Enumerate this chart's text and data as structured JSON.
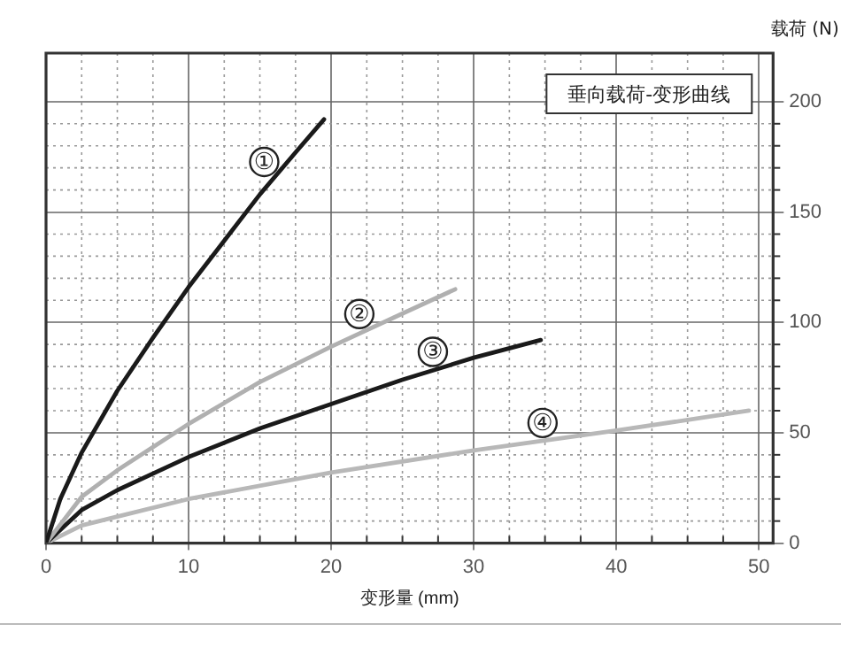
{
  "chart_data": {
    "type": "line",
    "xlabel": "变形量 (mm)",
    "ylabel": "载荷 (N)",
    "annotations": [
      "垂向载荷-变形曲线"
    ],
    "xlim": [
      0,
      51
    ],
    "xticks": [
      0,
      10,
      20,
      30,
      40,
      50
    ],
    "ylim": [
      0,
      222
    ],
    "yticks": [
      0,
      50,
      100,
      150,
      200
    ],
    "grid": true,
    "legend": false,
    "marker": "none",
    "line_style": "solid",
    "series": [
      {
        "name": "①",
        "color": "#1a1a1a",
        "x": [
          0,
          1,
          2.5,
          5,
          7.5,
          10,
          12.5,
          15,
          17.5,
          19.5
        ],
        "values": [
          0,
          20,
          41,
          69,
          93,
          116,
          137,
          158,
          177,
          192
        ]
      },
      {
        "name": "②",
        "color": "#b0b0b0",
        "x": [
          0,
          2.5,
          5,
          10,
          15,
          20,
          25,
          28.7
        ],
        "values": [
          0,
          21,
          33,
          54,
          73,
          89,
          104,
          115
        ]
      },
      {
        "name": "③",
        "color": "#1a1a1a",
        "x": [
          0,
          2.5,
          5,
          10,
          15,
          20,
          25,
          30,
          34.7
        ],
        "values": [
          0,
          15,
          24,
          39,
          52,
          63,
          74,
          84,
          92
        ]
      },
      {
        "name": "④",
        "color": "#b8b8b8",
        "x": [
          0,
          2.5,
          5,
          10,
          20,
          30,
          40,
          49.3
        ],
        "values": [
          0,
          8,
          12,
          20,
          32,
          42,
          51,
          60
        ]
      }
    ]
  }
}
